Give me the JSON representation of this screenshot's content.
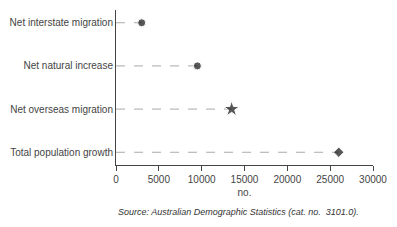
{
  "chart_data": {
    "type": "dot",
    "categories": [
      "Net interstate migration",
      "Net natural increase",
      "Net overseas migration",
      "Total population growth"
    ],
    "values": [
      3000,
      9500,
      13500,
      26000
    ],
    "markers": [
      "circle",
      "circle",
      "star",
      "diamond"
    ],
    "color": "#111111",
    "line_style": "dashed",
    "xlabel": "no.",
    "xlim": [
      0,
      30000
    ],
    "xticks": [
      0,
      5000,
      10000,
      15000,
      20000,
      25000,
      30000
    ],
    "grid": false,
    "annotations": [
      "Source: Australian Demographic Statistics (cat. no.  3101.0)."
    ]
  }
}
